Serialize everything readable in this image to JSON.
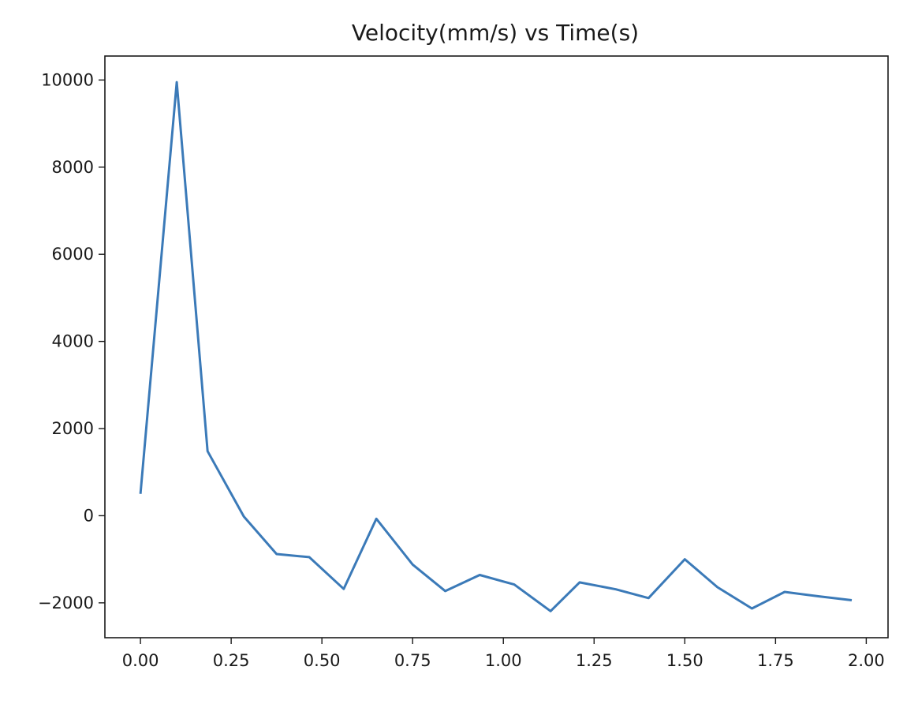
{
  "chart_data": {
    "type": "line",
    "title": "Velocity(mm/s) vs Time(s)",
    "xlabel": "",
    "ylabel": "",
    "xlim": [
      -0.098,
      2.06
    ],
    "ylim": [
      -2800,
      10550
    ],
    "xticks": [
      0.0,
      0.25,
      0.5,
      0.75,
      1.0,
      1.25,
      1.5,
      1.75,
      2.0
    ],
    "xtick_labels": [
      "0.00",
      "0.25",
      "0.50",
      "0.75",
      "1.00",
      "1.25",
      "1.50",
      "1.75",
      "2.00"
    ],
    "yticks": [
      -2000,
      0,
      2000,
      4000,
      6000,
      8000,
      10000
    ],
    "ytick_labels": [
      "−2000",
      "0",
      "2000",
      "4000",
      "6000",
      "8000",
      "10000"
    ],
    "grid": false,
    "series": [
      {
        "color": "#3b7ab8",
        "x": [
          0.0,
          0.1,
          0.185,
          0.285,
          0.375,
          0.465,
          0.56,
          0.65,
          0.75,
          0.84,
          0.935,
          1.03,
          1.13,
          1.21,
          1.31,
          1.4,
          1.5,
          1.59,
          1.685,
          1.775,
          1.87,
          1.96
        ],
        "y": [
          500,
          9950,
          1480,
          -20,
          -880,
          -950,
          -1680,
          -70,
          -1120,
          -1730,
          -1360,
          -1580,
          -2190,
          -1530,
          -1690,
          -1890,
          -1000,
          -1640,
          -2130,
          -1750,
          -1850,
          -1940
        ]
      }
    ]
  }
}
